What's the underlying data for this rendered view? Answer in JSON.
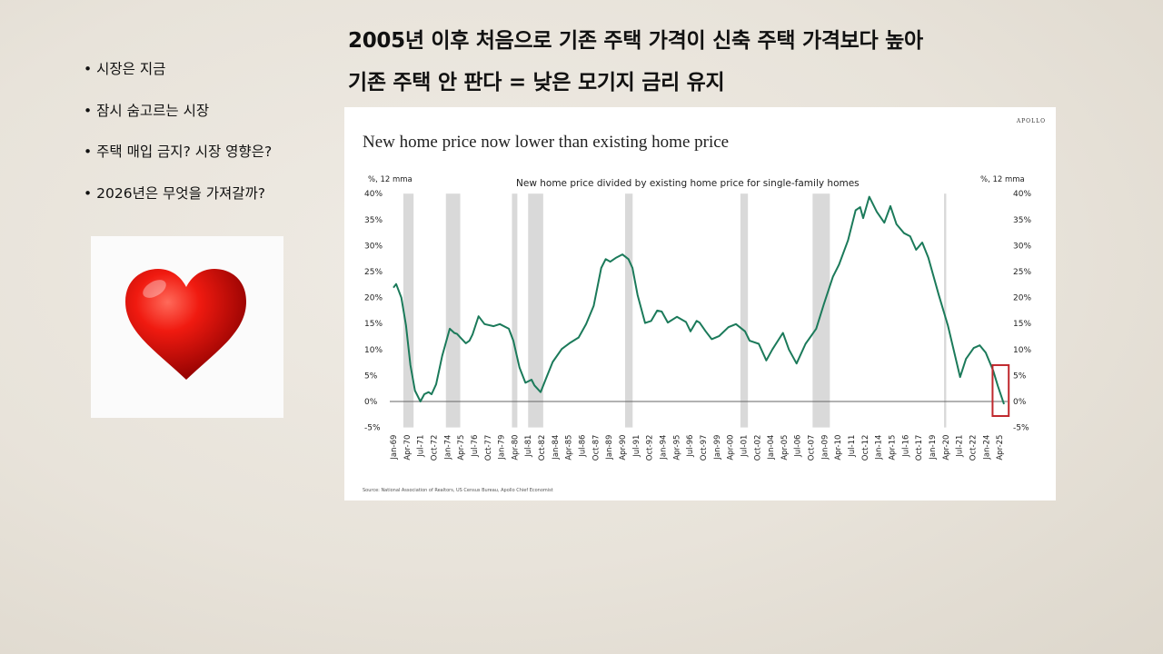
{
  "headings": {
    "line1": "2005년 이후 처음으로 기존 주택 가격이 신축 주택 가격보다 높아",
    "line2": "기존 주택 안 판다 = 낮은 모기지 금리 유지"
  },
  "bullets": [
    "시장은 지금",
    "잠시 숨고르는 시장",
    "주택 매입 금지? 시장 영향은?",
    "2026년은 무엇을 가져갈까?"
  ],
  "heart_image": {
    "icon": "heart-icon",
    "color": "#e00000"
  },
  "chart_data": {
    "type": "line",
    "brand": "APOLLO",
    "title": "New home price now lower than existing home price",
    "subtitle": "New home price divided by existing home price for single-family homes",
    "ylabel_left": "%, 12 mma",
    "ylabel_right": "%, 12 mma",
    "source": "Source: National Association of Realtors, US Census Bureau, Apollo Chief Economist",
    "ylim": [
      -5,
      40
    ],
    "yticks": [
      "-5%",
      "0%",
      "5%",
      "10%",
      "15%",
      "20%",
      "25%",
      "30%",
      "35%",
      "40%"
    ],
    "ytick_values": [
      -5,
      0,
      5,
      10,
      15,
      20,
      25,
      30,
      35,
      40
    ],
    "xlim": [
      1969,
      2025.66
    ],
    "xticks": [
      "Jan-69",
      "Apr-70",
      "Jul-71",
      "Oct-72",
      "Jan-74",
      "Apr-75",
      "Jul-76",
      "Oct-77",
      "Jan-79",
      "Apr-80",
      "Jul-81",
      "Oct-82",
      "Jan-84",
      "Apr-85",
      "Jul-86",
      "Oct-87",
      "Jan-89",
      "Apr-90",
      "Jul-91",
      "Oct-92",
      "Jan-94",
      "Apr-95",
      "Jul-96",
      "Oct-97",
      "Jan-99",
      "Apr-00",
      "Jul-01",
      "Oct-02",
      "Jan-04",
      "Apr-05",
      "Jul-06",
      "Oct-07",
      "Jan-09",
      "Apr-10",
      "Jul-11",
      "Oct-12",
      "Jan-14",
      "Apr-15",
      "Jul-16",
      "Oct-17",
      "Jan-19",
      "Apr-20",
      "Jul-21",
      "Oct-22",
      "Jan-24",
      "Apr-25"
    ],
    "line_color": "#1b7a5a",
    "recession_color": "#d9d9d9",
    "highlight_color": "#c0282d",
    "recessions": [
      [
        1969.92,
        1970.87
      ],
      [
        1973.87,
        1975.2
      ],
      [
        1980.0,
        1980.5
      ],
      [
        1981.5,
        1982.9
      ],
      [
        1990.5,
        1991.2
      ],
      [
        2001.2,
        2001.9
      ],
      [
        2007.9,
        2009.5
      ],
      [
        2020.1,
        2020.3
      ]
    ],
    "highlight_box": {
      "x": [
        2024.6,
        2026.1
      ],
      "y": [
        -2.8,
        7
      ]
    },
    "series": [
      {
        "name": "New/existing home price",
        "points": [
          [
            1969.0,
            21.9
          ],
          [
            1969.25,
            22.6
          ],
          [
            1969.73,
            20
          ],
          [
            1970.16,
            14.7
          ],
          [
            1970.58,
            7
          ],
          [
            1971.0,
            2.1
          ],
          [
            1971.5,
            0
          ],
          [
            1971.87,
            1.4
          ],
          [
            1972.26,
            1.8
          ],
          [
            1972.54,
            1.4
          ],
          [
            1972.96,
            3.3
          ],
          [
            1973.53,
            8.8
          ],
          [
            1974.23,
            14
          ],
          [
            1974.65,
            13.2
          ],
          [
            1974.9,
            13
          ],
          [
            1975.21,
            12.3
          ],
          [
            1975.72,
            11.2
          ],
          [
            1976.06,
            11.7
          ],
          [
            1976.34,
            12.9
          ],
          [
            1976.9,
            16.4
          ],
          [
            1977.46,
            14.9
          ],
          [
            1978.3,
            14.5
          ],
          [
            1978.87,
            14.9
          ],
          [
            1979.71,
            14
          ],
          [
            1980.13,
            11.7
          ],
          [
            1980.7,
            6.5
          ],
          [
            1981.25,
            3.6
          ],
          [
            1981.82,
            4.2
          ],
          [
            1982.09,
            3.1
          ],
          [
            1982.66,
            1.8
          ],
          [
            1983.22,
            4.7
          ],
          [
            1983.78,
            7.6
          ],
          [
            1984.62,
            10.1
          ],
          [
            1985.33,
            11.2
          ],
          [
            1986.18,
            12.3
          ],
          [
            1986.88,
            14.9
          ],
          [
            1987.58,
            18.4
          ],
          [
            1988.28,
            25.7
          ],
          [
            1988.7,
            27.4
          ],
          [
            1989.13,
            26.9
          ],
          [
            1989.68,
            27.7
          ],
          [
            1990.25,
            28.3
          ],
          [
            1990.81,
            27.4
          ],
          [
            1991.18,
            25.7
          ],
          [
            1991.66,
            20.5
          ],
          [
            1992.36,
            15.1
          ],
          [
            1992.92,
            15.5
          ],
          [
            1993.48,
            17.5
          ],
          [
            1993.9,
            17.3
          ],
          [
            1994.46,
            15.2
          ],
          [
            1995.31,
            16.3
          ],
          [
            1996.15,
            15.3
          ],
          [
            1996.57,
            13.5
          ],
          [
            1997.14,
            15.5
          ],
          [
            1997.41,
            15.2
          ],
          [
            1997.98,
            13.5
          ],
          [
            1998.54,
            12
          ],
          [
            1999.24,
            12.6
          ],
          [
            2000.09,
            14.3
          ],
          [
            2000.79,
            14.9
          ],
          [
            2001.63,
            13.5
          ],
          [
            2002.05,
            11.7
          ],
          [
            2002.9,
            11.1
          ],
          [
            2003.6,
            7.9
          ],
          [
            2004.16,
            10
          ],
          [
            2005.15,
            13.2
          ],
          [
            2005.7,
            10
          ],
          [
            2006.41,
            7.3
          ],
          [
            2007.25,
            11.1
          ],
          [
            2008.23,
            14
          ],
          [
            2008.94,
            18.7
          ],
          [
            2009.78,
            24
          ],
          [
            2010.34,
            26.3
          ],
          [
            2011.18,
            31
          ],
          [
            2011.89,
            36.8
          ],
          [
            2012.31,
            37.4
          ],
          [
            2012.59,
            35.3
          ],
          [
            2013.16,
            39.4
          ],
          [
            2013.86,
            36.5
          ],
          [
            2014.56,
            34.4
          ],
          [
            2015.12,
            37.6
          ],
          [
            2015.69,
            34.1
          ],
          [
            2016.39,
            32.4
          ],
          [
            2016.95,
            31.8
          ],
          [
            2017.51,
            29.2
          ],
          [
            2018.07,
            30.6
          ],
          [
            2018.64,
            27.7
          ],
          [
            2019.61,
            20.5
          ],
          [
            2020.46,
            14.6
          ],
          [
            2021.59,
            4.7
          ],
          [
            2022.14,
            8.2
          ],
          [
            2022.85,
            10.3
          ],
          [
            2023.41,
            10.8
          ],
          [
            2023.97,
            9.4
          ],
          [
            2024.67,
            5.9
          ],
          [
            2025.09,
            3
          ],
          [
            2025.66,
            -0.5
          ]
        ]
      }
    ]
  }
}
